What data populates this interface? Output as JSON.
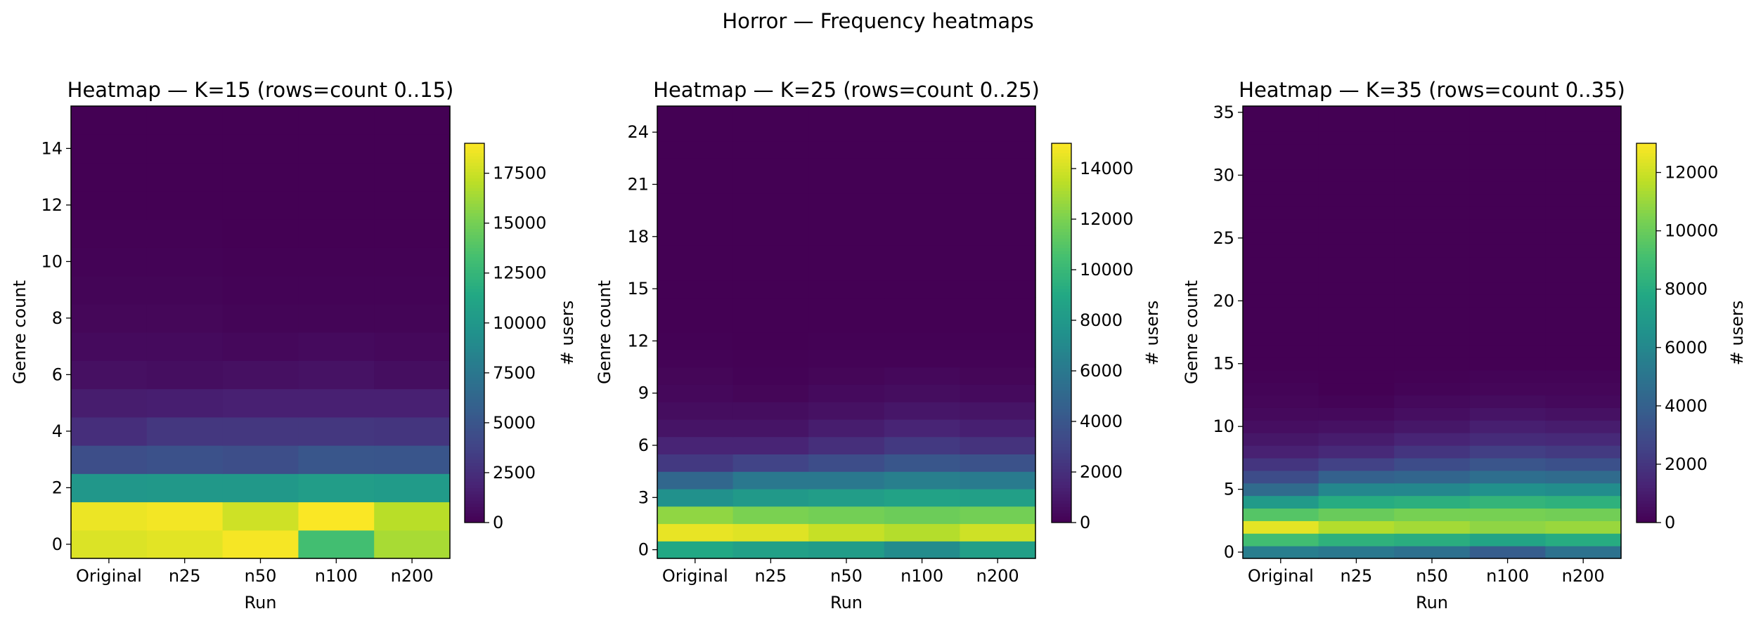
{
  "suptitle": "Horror — Frequency heatmaps",
  "chart_data": [
    {
      "type": "heatmap",
      "title": "Heatmap — K=15 (rows=count 0..15)",
      "xlabel": "Run",
      "ylabel": "Genre count",
      "colorbar_label": "# users",
      "colormap": "viridis",
      "categories": [
        "Original",
        "n25",
        "n50",
        "n100",
        "n200"
      ],
      "y_ticks": [
        0,
        2,
        4,
        6,
        8,
        10,
        12,
        14
      ],
      "colorbar_ticks": [
        0,
        2500,
        5000,
        7500,
        10000,
        12500,
        15000,
        17500
      ],
      "vmin": 0,
      "vmax": 19000,
      "rows": [
        [
          18000,
          18200,
          18800,
          13200,
          16500
        ],
        [
          18500,
          18700,
          17600,
          18900,
          17000
        ],
        [
          10000,
          10100,
          10100,
          10500,
          10300
        ],
        [
          4500,
          4700,
          4500,
          5100,
          5000
        ],
        [
          2500,
          3000,
          3000,
          3000,
          2900
        ],
        [
          1500,
          1600,
          1700,
          1700,
          1700
        ],
        [
          800,
          700,
          800,
          900,
          700
        ],
        [
          500,
          500,
          400,
          500,
          400
        ],
        [
          300,
          300,
          200,
          200,
          200
        ],
        [
          200,
          200,
          100,
          100,
          100
        ],
        [
          100,
          100,
          50,
          50,
          50
        ],
        [
          50,
          50,
          0,
          0,
          0
        ],
        [
          0,
          0,
          0,
          0,
          0
        ],
        [
          0,
          0,
          0,
          0,
          0
        ],
        [
          0,
          0,
          0,
          0,
          0
        ],
        [
          0,
          0,
          0,
          0,
          0
        ]
      ]
    },
    {
      "type": "heatmap",
      "title": "Heatmap — K=25 (rows=count 0..25)",
      "xlabel": "Run",
      "ylabel": "Genre count",
      "colorbar_label": "# users",
      "colormap": "viridis",
      "categories": [
        "Original",
        "n25",
        "n50",
        "n100",
        "n200"
      ],
      "y_ticks": [
        0,
        3,
        6,
        9,
        12,
        15,
        18,
        21,
        24
      ],
      "colorbar_ticks": [
        0,
        2000,
        4000,
        6000,
        8000,
        10000,
        12000,
        14000
      ],
      "vmin": 0,
      "vmax": 15000,
      "rows": [
        [
          9000,
          8500,
          8200,
          7200,
          8400
        ],
        [
          14500,
          14300,
          13700,
          13300,
          13900
        ],
        [
          12500,
          12000,
          11800,
          11600,
          11800
        ],
        [
          7500,
          8000,
          8300,
          8600,
          8400
        ],
        [
          5000,
          6000,
          6000,
          6400,
          6200
        ],
        [
          2500,
          3000,
          3500,
          4000,
          3800
        ],
        [
          1500,
          1500,
          2000,
          2500,
          2200
        ],
        [
          800,
          800,
          1200,
          1500,
          1300
        ],
        [
          500,
          500,
          700,
          900,
          800
        ],
        [
          300,
          200,
          400,
          500,
          400
        ],
        [
          200,
          100,
          200,
          300,
          200
        ],
        [
          100,
          50,
          100,
          100,
          100
        ],
        [
          50,
          0,
          50,
          50,
          50
        ],
        [
          0,
          0,
          0,
          0,
          0
        ],
        [
          0,
          0,
          0,
          0,
          0
        ],
        [
          0,
          0,
          0,
          0,
          0
        ],
        [
          0,
          0,
          0,
          0,
          0
        ],
        [
          0,
          0,
          0,
          0,
          0
        ],
        [
          0,
          0,
          0,
          0,
          0
        ],
        [
          0,
          0,
          0,
          0,
          0
        ],
        [
          0,
          0,
          0,
          0,
          0
        ],
        [
          0,
          0,
          0,
          0,
          0
        ],
        [
          0,
          0,
          0,
          0,
          0
        ],
        [
          0,
          0,
          0,
          0,
          0
        ],
        [
          0,
          0,
          0,
          0,
          0
        ],
        [
          0,
          0,
          0,
          0,
          0
        ]
      ]
    },
    {
      "type": "heatmap",
      "title": "Heatmap — K=35 (rows=count 0..35)",
      "xlabel": "Run",
      "ylabel": "Genre count",
      "colorbar_label": "# users",
      "colormap": "viridis",
      "categories": [
        "Original",
        "n25",
        "n50",
        "n100",
        "n200"
      ],
      "y_ticks": [
        0,
        5,
        10,
        15,
        20,
        25,
        30,
        35
      ],
      "colorbar_ticks": [
        0,
        2000,
        4000,
        6000,
        8000,
        10000,
        12000
      ],
      "vmin": 0,
      "vmax": 13000,
      "rows": [
        [
          5500,
          5200,
          4800,
          3800,
          4900
        ],
        [
          9000,
          8300,
          8100,
          7600,
          8000
        ],
        [
          12500,
          11500,
          11200,
          10800,
          11000
        ],
        [
          9500,
          10000,
          10300,
          10300,
          10200
        ],
        [
          7000,
          8000,
          8200,
          8500,
          8300
        ],
        [
          4500,
          6000,
          6000,
          6500,
          6300
        ],
        [
          3000,
          4000,
          4200,
          4700,
          4500
        ],
        [
          2000,
          2500,
          3000,
          3400,
          3200
        ],
        [
          1200,
          1500,
          2000,
          2400,
          2200
        ],
        [
          800,
          1000,
          1300,
          1600,
          1500
        ],
        [
          500,
          600,
          800,
          1100,
          1000
        ],
        [
          300,
          300,
          500,
          700,
          600
        ],
        [
          200,
          100,
          300,
          400,
          300
        ],
        [
          100,
          0,
          100,
          200,
          200
        ],
        [
          50,
          0,
          50,
          100,
          100
        ],
        [
          0,
          0,
          0,
          0,
          0
        ],
        [
          0,
          0,
          0,
          0,
          0
        ],
        [
          0,
          0,
          0,
          0,
          0
        ],
        [
          0,
          0,
          0,
          0,
          0
        ],
        [
          0,
          0,
          0,
          0,
          0
        ],
        [
          0,
          0,
          0,
          0,
          0
        ],
        [
          0,
          0,
          0,
          0,
          0
        ],
        [
          0,
          0,
          0,
          0,
          0
        ],
        [
          0,
          0,
          0,
          0,
          0
        ],
        [
          0,
          0,
          0,
          0,
          0
        ],
        [
          0,
          0,
          0,
          0,
          0
        ],
        [
          0,
          0,
          0,
          0,
          0
        ],
        [
          0,
          0,
          0,
          0,
          0
        ],
        [
          0,
          0,
          0,
          0,
          0
        ],
        [
          0,
          0,
          0,
          0,
          0
        ],
        [
          0,
          0,
          0,
          0,
          0
        ],
        [
          0,
          0,
          0,
          0,
          0
        ],
        [
          0,
          0,
          0,
          0,
          0
        ],
        [
          0,
          0,
          0,
          0,
          0
        ],
        [
          0,
          0,
          0,
          0,
          0
        ],
        [
          0,
          0,
          0,
          0,
          0
        ]
      ]
    }
  ]
}
